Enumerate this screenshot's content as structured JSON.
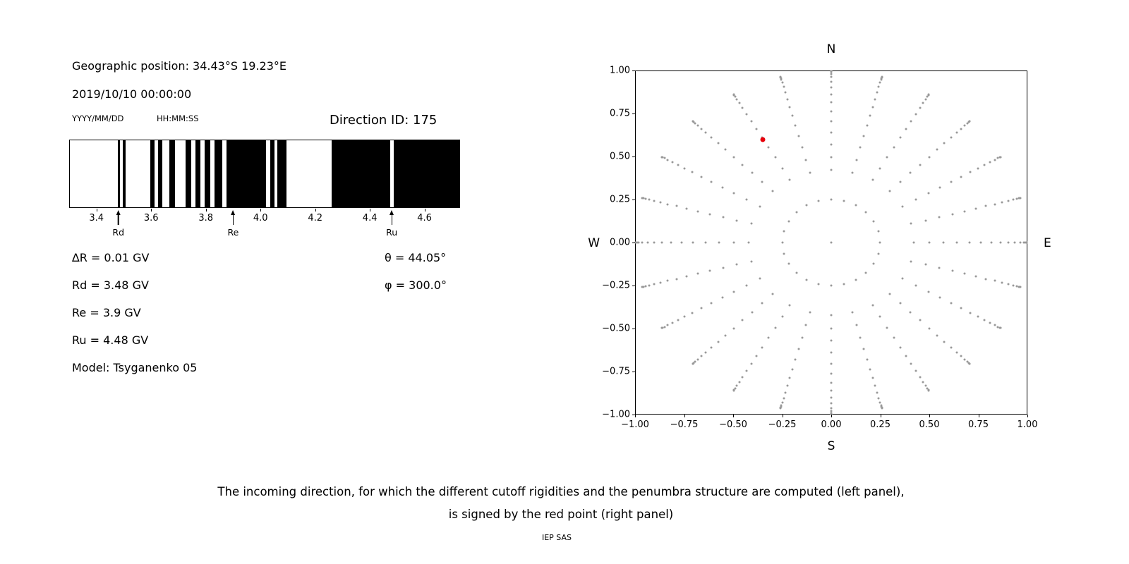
{
  "header": {
    "geo_position": "Geographic position: 34.43°S 19.23°E",
    "datetime": "2019/10/10 00:00:00",
    "date_format": "YYYY/MM/DD",
    "time_format": "HH:MM:SS",
    "direction_id": "Direction ID: 175"
  },
  "params": {
    "delta_r": "∆R = 0.01 GV",
    "rd": "Rd = 3.48 GV",
    "re": "Re = 3.9 GV",
    "ru": "Ru = 4.48 GV",
    "model": "Model: Tsyganenko 05",
    "theta": "θ = 44.05°",
    "phi": "φ = 300.0°"
  },
  "caption": {
    "line1": "The incoming direction, for which the different cutoff rigidities and the penumbra structure are computed (left panel),",
    "line2": "is signed by the red point (right panel)",
    "credit": "IEP SAS"
  },
  "chart_data": [
    {
      "name": "penumbra-structure",
      "type": "bar",
      "description": "Cosmic ray penumbra barcode: black bands = allowed rigidity intervals (GV)",
      "xlim": [
        3.3,
        4.73
      ],
      "xticks": [
        3.4,
        3.6,
        3.8,
        4.0,
        4.2,
        4.4,
        4.6
      ],
      "xtick_labels": [
        "3.4",
        "3.6",
        "3.8",
        "4.0",
        "4.2",
        "4.4",
        "4.6"
      ],
      "black_bands_gv": [
        [
          3.475,
          3.485
        ],
        [
          3.495,
          3.505
        ],
        [
          3.595,
          3.61
        ],
        [
          3.625,
          3.64
        ],
        [
          3.665,
          3.685
        ],
        [
          3.725,
          3.745
        ],
        [
          3.76,
          3.78
        ],
        [
          3.795,
          3.815
        ],
        [
          3.83,
          3.86
        ],
        [
          3.875,
          4.02
        ],
        [
          4.035,
          4.05
        ],
        [
          4.062,
          4.095
        ],
        [
          4.26,
          4.475
        ],
        [
          4.49,
          4.73
        ]
      ],
      "arrows": [
        {
          "label": "Rd",
          "x_gv": 3.48
        },
        {
          "label": "Re",
          "x_gv": 3.9
        },
        {
          "label": "Ru",
          "x_gv": 4.48
        }
      ],
      "bar_color": "#000000",
      "bg_color": "#ffffff"
    },
    {
      "name": "incoming-direction-grid",
      "type": "scatter",
      "xlim": [
        -1.0,
        1.0
      ],
      "ylim": [
        -1.0,
        1.0
      ],
      "xtick_labels": [
        "−1.00",
        "−0.75",
        "−0.50",
        "−0.25",
        "0.00",
        "0.25",
        "0.50",
        "0.75",
        "1.00"
      ],
      "ytick_labels": [
        "−1.00",
        "−0.75",
        "−0.50",
        "−0.25",
        "0.00",
        "0.25",
        "0.50",
        "0.75",
        "1.00"
      ],
      "compass": {
        "top": "N",
        "bottom": "S",
        "left": "W",
        "right": "E"
      },
      "grid_points": {
        "azimuth_start_deg": 0,
        "azimuth_step_deg": 15,
        "azimuth_count": 24,
        "zenith_deg": [
          14.5,
          25,
          30,
          35,
          40,
          45,
          50,
          55,
          60,
          65,
          70,
          75,
          80,
          84,
          87,
          89
        ],
        "radius_formula": "sin(zenith)"
      },
      "center_dot": [
        0,
        0
      ],
      "red_point": {
        "x": -0.35,
        "y": 0.6,
        "theta_deg": 44.05,
        "phi_deg": 300.0
      },
      "dot_color": "#999999",
      "red_color": "#e8000b",
      "grid": "off",
      "legend": "none"
    }
  ]
}
